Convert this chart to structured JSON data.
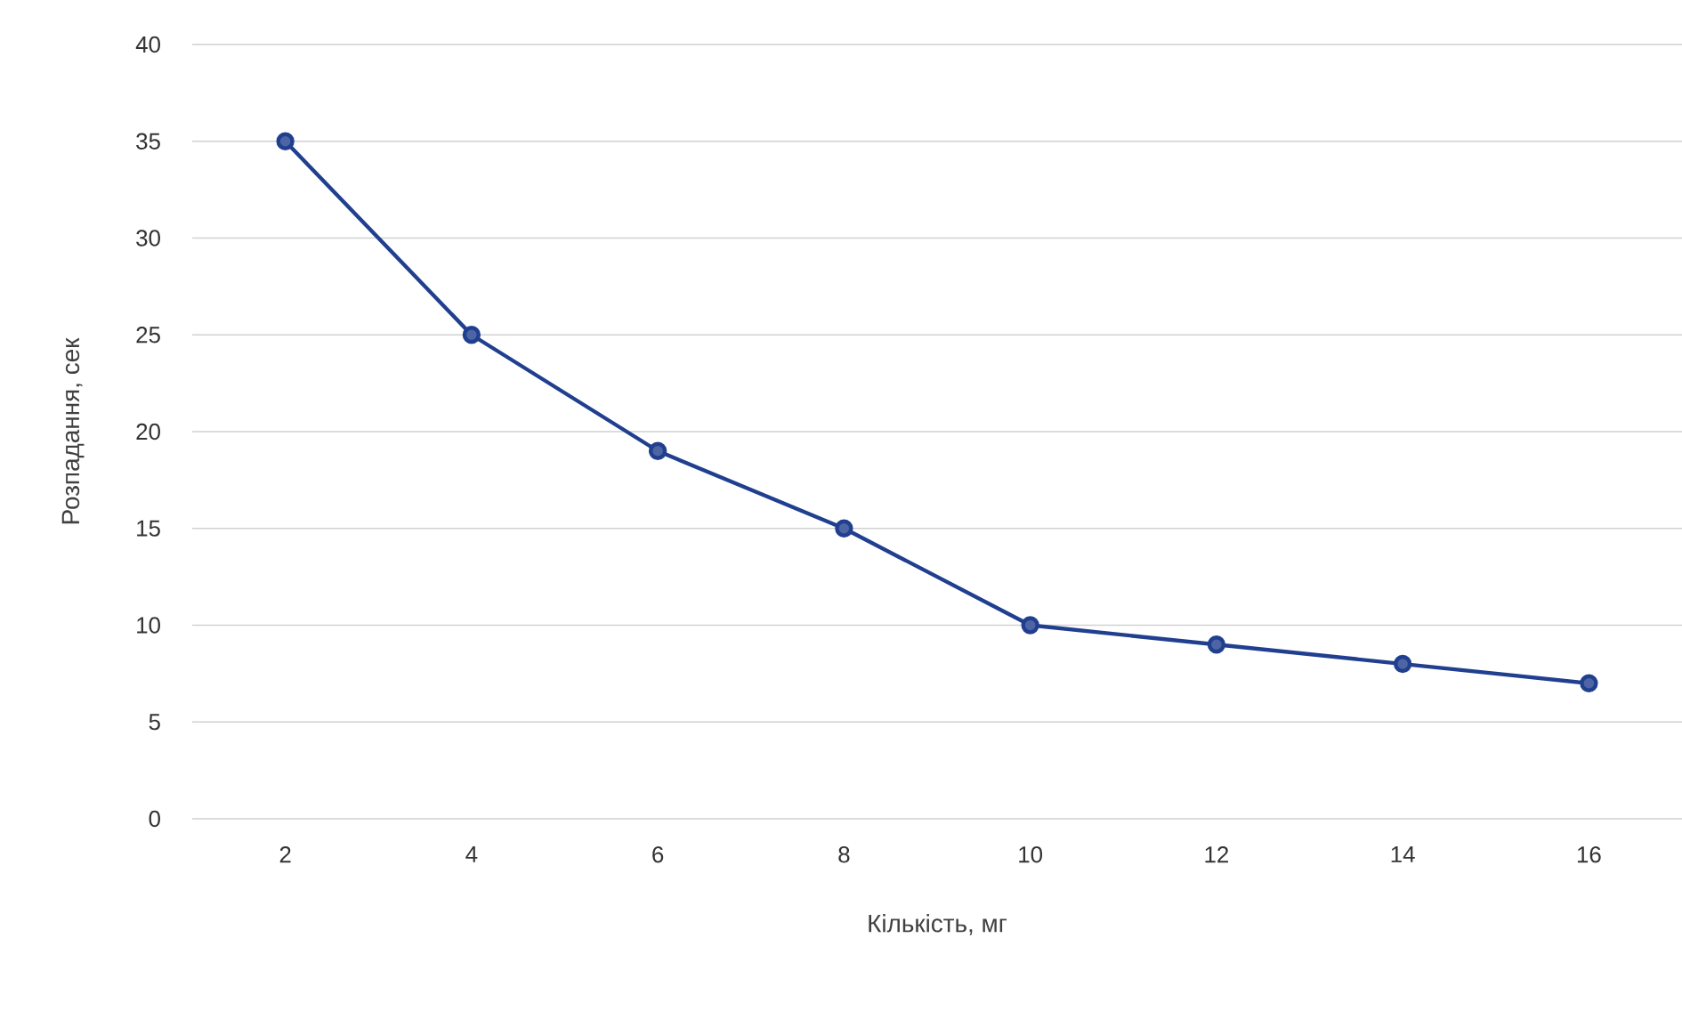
{
  "chart_data": {
    "type": "line",
    "xlabel": "Кількість, мг",
    "ylabel": "Розпадання, сек",
    "categories": [
      "2",
      "4",
      "6",
      "8",
      "10",
      "12",
      "14",
      "16"
    ],
    "series": [
      {
        "color": "#203f8f",
        "values": [
          35,
          25,
          19,
          15,
          10,
          9,
          8,
          7
        ]
      }
    ],
    "ylim": [
      0,
      40
    ],
    "yticks": [
      0,
      5,
      10,
      15,
      20,
      25,
      30,
      35,
      40
    ],
    "grid": "y",
    "marker": "circle",
    "line_style": "solid"
  }
}
